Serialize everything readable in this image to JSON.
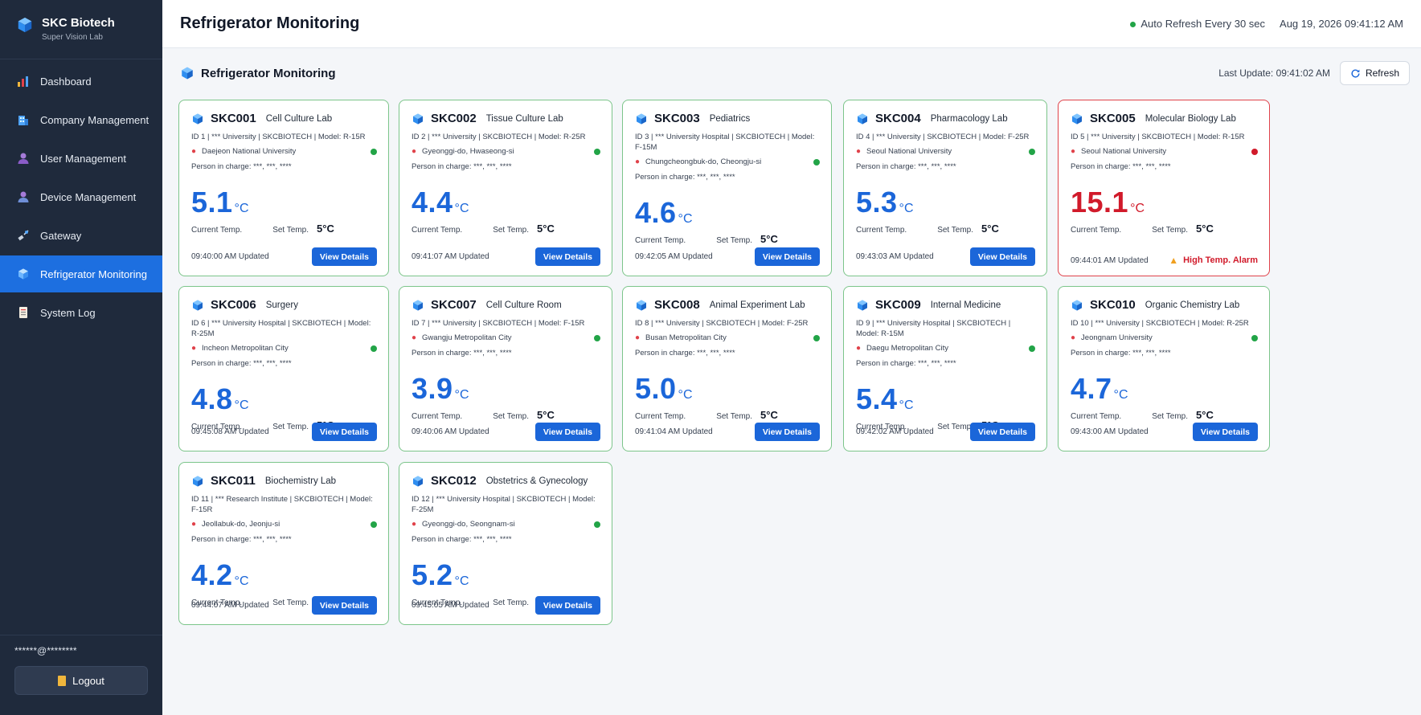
{
  "brand": {
    "title": "SKC Biotech",
    "subtitle": "Super Vision Lab"
  },
  "nav": [
    {
      "label": "Dashboard",
      "icon": "bar-chart-icon"
    },
    {
      "label": "Company Management",
      "icon": "building-icon"
    },
    {
      "label": "User Management",
      "icon": "user-icon"
    },
    {
      "label": "Device Management",
      "icon": "device-user-icon"
    },
    {
      "label": "Gateway",
      "icon": "satellite-icon"
    },
    {
      "label": "Refrigerator Monitoring",
      "icon": "cube-icon",
      "active": true
    },
    {
      "label": "System Log",
      "icon": "log-icon"
    }
  ],
  "sidebar_bottom": {
    "user": "******@********",
    "logout": "Logout"
  },
  "header": {
    "title": "Refrigerator Monitoring",
    "auto_refresh": "Auto Refresh Every 30 sec",
    "datetime": "Aug 19, 2026 09:41:12 AM"
  },
  "section": {
    "title": "Refrigerator Monitoring",
    "last_update": "Last Update: 09:41:02 AM",
    "refresh": "Refresh"
  },
  "labels": {
    "current": "Current Temp.",
    "set": "Set Temp.",
    "view": "View Details",
    "alarm": "High Temp. Alarm",
    "pic": "Person in charge: ***, ***, ****"
  },
  "colors": {
    "accent": "#1b66d9",
    "ok_border": "#7cc58a",
    "alarm": "#d11a2a",
    "status_ok": "#22a447"
  },
  "cards": [
    {
      "id": "SKC001",
      "name": "Cell Culture Lab",
      "meta": "ID 1  |  *** University  |  SKCBIOTECH  |  Model: R-15R",
      "location": "Daejeon National University",
      "temp": "5.1",
      "unit": "°C",
      "set": "5°C",
      "updated": "09:40:00 AM Updated",
      "status": "ok"
    },
    {
      "id": "SKC002",
      "name": "Tissue Culture Lab",
      "meta": "ID 2  |  *** University  |  SKCBIOTECH  |  Model: R-25R",
      "location": "Gyeonggi-do, Hwaseong-si",
      "temp": "4.4",
      "unit": "°C",
      "set": "5°C",
      "updated": "09:41:07 AM Updated",
      "status": "ok"
    },
    {
      "id": "SKC003",
      "name": "Pediatrics",
      "meta": "ID 3  |  *** University Hospital  |  SKCBIOTECH  |  Model: F-15M",
      "location": "Chungcheongbuk-do, Cheongju-si",
      "temp": "4.6",
      "unit": "°C",
      "set": "5°C",
      "updated": "09:42:05 AM Updated",
      "status": "ok"
    },
    {
      "id": "SKC004",
      "name": "Pharmacology Lab",
      "meta": "ID 4  |  *** University  |  SKCBIOTECH  |  Model: F-25R",
      "location": "Seoul National University",
      "temp": "5.3",
      "unit": "°C",
      "set": "5°C",
      "updated": "09:43:03 AM Updated",
      "status": "ok"
    },
    {
      "id": "SKC005",
      "name": "Molecular Biology Lab",
      "meta": "ID 5  |  *** University  |  SKCBIOTECH  |  Model: R-15R",
      "location": "Seoul National University",
      "temp": "15.1",
      "unit": "°C",
      "set": "5°C",
      "updated": "09:44:01 AM Updated",
      "status": "alarm"
    },
    {
      "id": "SKC006",
      "name": "Surgery",
      "meta": "ID 6  |  *** University Hospital  |  SKCBIOTECH  |  Model: R-25M",
      "location": "Incheon Metropolitan City",
      "temp": "4.8",
      "unit": "°C",
      "set": "5°C",
      "updated": "09:45:08 AM Updated",
      "status": "ok"
    },
    {
      "id": "SKC007",
      "name": "Cell Culture Room",
      "meta": "ID 7  |  *** University  |  SKCBIOTECH  |  Model: F-15R",
      "location": "Gwangju Metropolitan City",
      "temp": "3.9",
      "unit": "°C",
      "set": "5°C",
      "updated": "09:40:06 AM Updated",
      "status": "ok"
    },
    {
      "id": "SKC008",
      "name": "Animal Experiment Lab",
      "meta": "ID 8  |  *** University  |  SKCBIOTECH  |  Model: F-25R",
      "location": "Busan Metropolitan City",
      "temp": "5.0",
      "unit": "°C",
      "set": "5°C",
      "updated": "09:41:04 AM Updated",
      "status": "ok"
    },
    {
      "id": "SKC009",
      "name": "Internal Medicine",
      "meta": "ID 9  |  *** University Hospital  |  SKCBIOTECH  |  Model: R-15M",
      "location": "Daegu Metropolitan City",
      "temp": "5.4",
      "unit": "°C",
      "set": "5°C",
      "updated": "09:42:02 AM Updated",
      "status": "ok"
    },
    {
      "id": "SKC010",
      "name": "Organic Chemistry Lab",
      "meta": "ID 10  |  *** University  |  SKCBIOTECH  |  Model: R-25R",
      "location": "Jeongnam University",
      "temp": "4.7",
      "unit": "°C",
      "set": "5°C",
      "updated": "09:43:00 AM Updated",
      "status": "ok"
    },
    {
      "id": "SKC011",
      "name": "Biochemistry Lab",
      "meta": "ID 11  |  *** Research Institute  |  SKCBIOTECH  |  Model: F-15R",
      "location": "Jeollabuk-do, Jeonju-si",
      "temp": "4.2",
      "unit": "°C",
      "set": "5°C",
      "updated": "09:44:07 AM Updated",
      "status": "ok"
    },
    {
      "id": "SKC012",
      "name": "Obstetrics & Gynecology",
      "meta": "ID 12  |  *** University Hospital  |  SKCBIOTECH  |  Model: F-25M",
      "location": "Gyeonggi-do, Seongnam-si",
      "temp": "5.2",
      "unit": "°C",
      "set": "5°C",
      "updated": "09:45:05 AM Updated",
      "status": "ok"
    }
  ]
}
